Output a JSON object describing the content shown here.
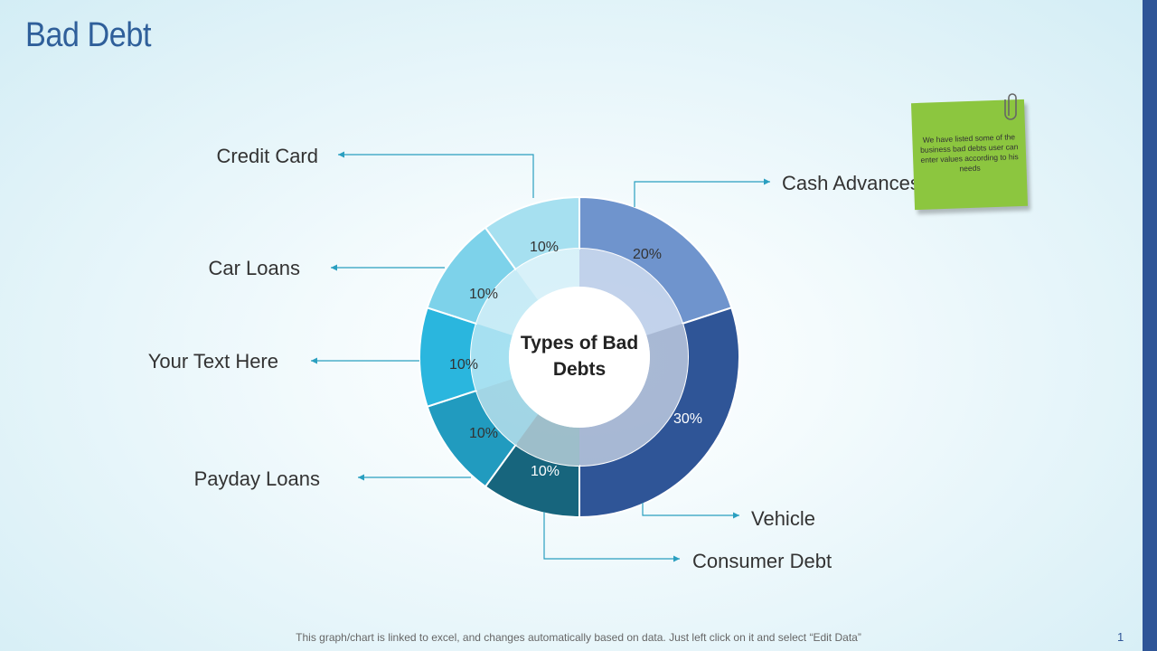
{
  "page": {
    "title": "Bad Debt",
    "footer": "This graph/chart is linked to excel, and changes automatically based on data. Just left click on it and select “Edit Data”",
    "page_number": "1",
    "note": "We have listed some of the business bad debts user can enter values according to his needs"
  },
  "chart_data": {
    "type": "pie",
    "variant": "donut",
    "center_label": "Types of Bad Debts",
    "slices": [
      {
        "name": "Cash Advances",
        "value": 20,
        "label": "20%",
        "color": "#6f94cd"
      },
      {
        "name": "Vehicle",
        "value": 30,
        "label": "30%",
        "color": "#2f5597"
      },
      {
        "name": "Consumer Debt",
        "value": 10,
        "label": "10%",
        "color": "#17657d"
      },
      {
        "name": "Payday Loans",
        "value": 10,
        "label": "10%",
        "color": "#219bbf"
      },
      {
        "name": "Your Text Here",
        "value": 10,
        "label": "10%",
        "color": "#2ab6de"
      },
      {
        "name": "Car Loans",
        "value": 10,
        "label": "10%",
        "color": "#7dd2ea"
      },
      {
        "name": "Credit Card",
        "value": 10,
        "label": "10%",
        "color": "#a6e0f0"
      }
    ]
  },
  "colors": {
    "title": "#2f5f9a",
    "accent_bar": "#2f5597",
    "leader_line": "#2a9fc0",
    "note": "#8cc63f"
  }
}
